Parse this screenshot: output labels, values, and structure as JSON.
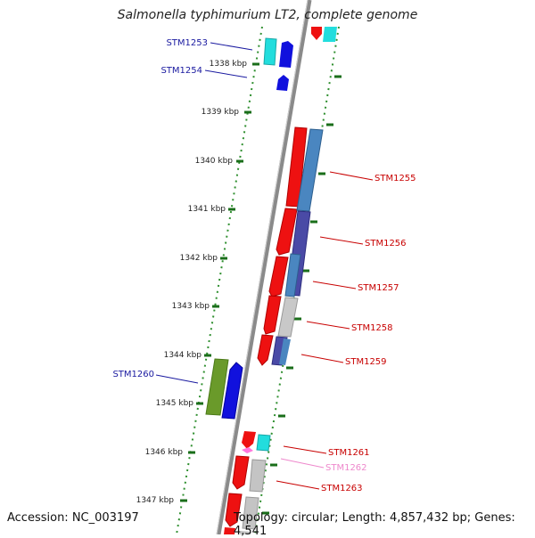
{
  "title": "Salmonella typhimurium LT2, complete genome",
  "footer": {
    "accession": "Accession: NC_003197",
    "summary": "Topology: circular; Length: 4,857,432 bp; Genes: 4,541"
  },
  "colors": {
    "backbone": "#909090",
    "tick": "#2f8f2f",
    "gene_red": "#ee1111",
    "gene_blue": "#1111dd",
    "gene_cyan": "#22dddd",
    "gene_steelblue": "#4a86c0",
    "gene_indigo": "#4a4aa6",
    "gene_gray": "#c4c4c4",
    "gene_olive": "#6a9a2a",
    "gene_pink": "#ff77dd",
    "label_blue": "#1a1aa0",
    "label_red": "#c80000",
    "label_pink": "#ee88cc"
  },
  "scale_labels": [
    "1338 kbp",
    "1339 kbp",
    "1340 kbp",
    "1341 kbp",
    "1342 kbp",
    "1343 kbp",
    "1344 kbp",
    "1345 kbp",
    "1346 kbp",
    "1347 kbp"
  ],
  "gene_labels": {
    "stm1253": "STM1253",
    "stm1254": "STM1254",
    "stm1255": "STM1255",
    "stm1256": "STM1256",
    "stm1257": "STM1257",
    "stm1258": "STM1258",
    "stm1259": "STM1259",
    "stm1260": "STM1260",
    "stm1261": "STM1261",
    "stm1262": "STM1262",
    "stm1263": "STM1263"
  }
}
